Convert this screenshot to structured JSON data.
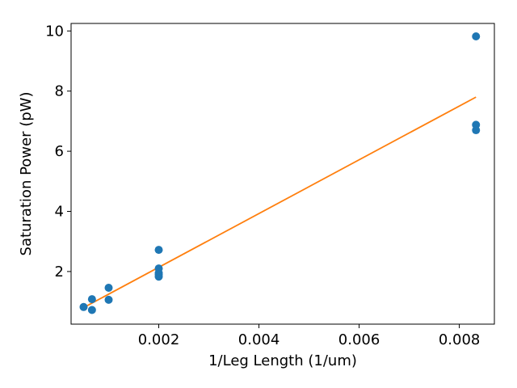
{
  "chart_data": {
    "type": "scatter",
    "xlabel": "1/Leg Length (1/um)",
    "ylabel": "Saturation Power (pW)",
    "xlim": [
      0.00025,
      0.0087
    ],
    "ylim": [
      0.25,
      10.25
    ],
    "x_ticks": [
      0.002,
      0.004,
      0.006,
      0.008
    ],
    "x_tick_labels": [
      "0.002",
      "0.004",
      "0.006",
      "0.008"
    ],
    "y_ticks": [
      2,
      4,
      6,
      8,
      10
    ],
    "y_tick_labels": [
      "2",
      "4",
      "6",
      "8",
      "10"
    ],
    "grid": false,
    "series": [
      {
        "kind": "points",
        "color": "#1f77b4",
        "x": [
          0.0005,
          0.000667,
          0.000667,
          0.001,
          0.001,
          0.002,
          0.002,
          0.002,
          0.002,
          0.002,
          0.008333,
          0.008333,
          0.008333
        ],
        "y": [
          0.82,
          1.08,
          0.72,
          1.46,
          1.06,
          2.72,
          2.1,
          1.95,
          1.83,
          1.9,
          9.82,
          6.88,
          6.7
        ]
      },
      {
        "kind": "line",
        "color": "#ff7f0e",
        "x": [
          0.0005,
          0.008333
        ],
        "y": [
          0.8,
          7.8
        ]
      }
    ]
  }
}
